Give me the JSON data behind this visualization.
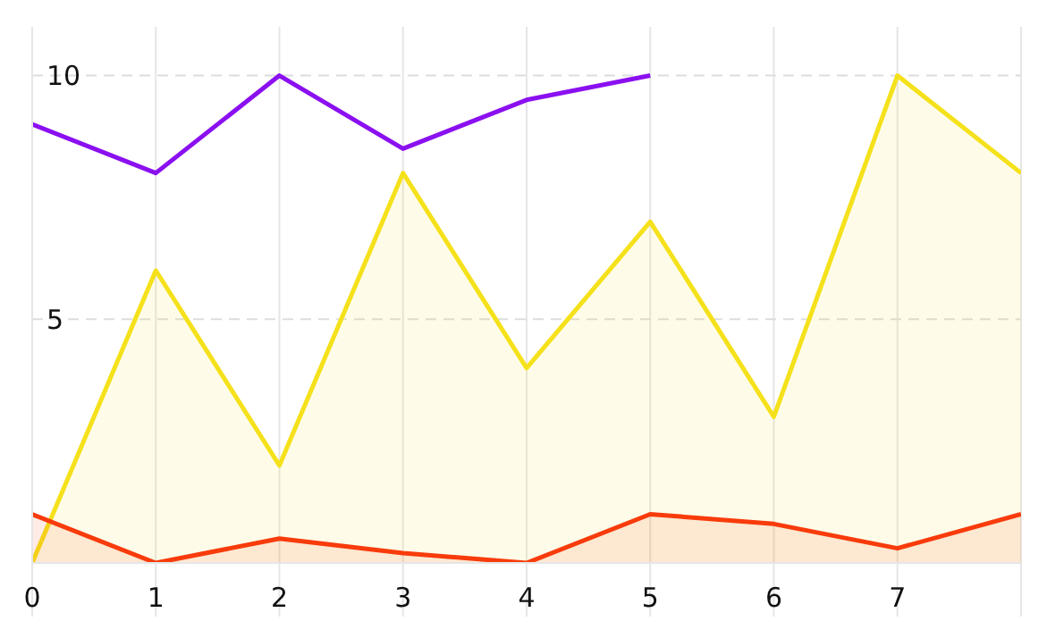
{
  "chart_data": {
    "type": "line",
    "x": [
      0,
      1,
      2,
      3,
      4,
      5,
      6,
      7,
      8
    ],
    "series": [
      {
        "color": "#8b10f0",
        "values": [
          9,
          8,
          10,
          8.5,
          9.5,
          10,
          null,
          null,
          null
        ]
      },
      {
        "type": "area",
        "color": "#f5e11b",
        "values": [
          0,
          6,
          2,
          8,
          4,
          7,
          3,
          10,
          8
        ]
      },
      {
        "type": "area",
        "color": "#f83b0b",
        "values": [
          1,
          0,
          0.5,
          0.2,
          0,
          1,
          0.8,
          0.3,
          1
        ]
      }
    ],
    "xlim": [
      0,
      8
    ],
    "xticks": [
      0,
      1,
      2,
      3,
      4,
      5,
      6,
      7,
      {
        "value": 8,
        "label": null
      }
    ],
    "ylim": [
      0,
      11
    ],
    "yticks": [
      5,
      10
    ],
    "grid": true,
    "marker": "none",
    "line_style": "solid"
  }
}
